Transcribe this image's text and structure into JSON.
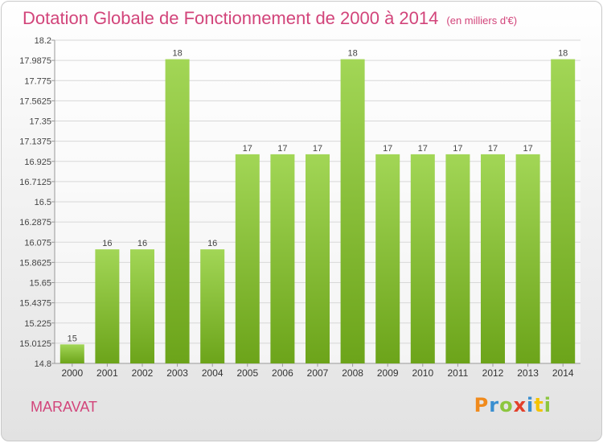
{
  "title": "Dotation Globale de Fonctionnement de 2000 à 2014",
  "unit": "(en milliers d'€)",
  "place": "MARAVAT",
  "brand": "Proxiti",
  "colors": {
    "title": "#d2447a",
    "bar_top": "#a2d656",
    "bar_bottom": "#6ca41a",
    "grid": "#d8d8d8"
  },
  "chart_data": {
    "type": "bar",
    "categories": [
      "2000",
      "2001",
      "2002",
      "2003",
      "2004",
      "2005",
      "2006",
      "2007",
      "2008",
      "2009",
      "2010",
      "2011",
      "2012",
      "2013",
      "2014"
    ],
    "values": [
      15,
      16,
      16,
      18,
      16,
      17,
      17,
      17,
      18,
      17,
      17,
      17,
      17,
      17,
      18
    ],
    "plot_values": [
      15,
      16,
      16,
      18,
      16,
      17,
      17,
      17,
      18,
      17,
      17,
      17,
      17,
      17,
      18
    ],
    "data_labels": [
      "15",
      "16",
      "16",
      "18",
      "16",
      "17",
      "17",
      "17",
      "18",
      "17",
      "17",
      "17",
      "17",
      "17",
      "18"
    ],
    "yticks": [
      "14.8",
      "15.0125",
      "15.225",
      "15.4375",
      "15.65",
      "15.8625",
      "16.075",
      "16.2875",
      "16.5",
      "16.7125",
      "16.925",
      "17.1375",
      "17.35",
      "17.5625",
      "17.775",
      "17.9875",
      "18.2"
    ],
    "ylim": [
      14.8,
      18.2
    ],
    "grid": true,
    "xlabel": "",
    "ylabel": ""
  }
}
